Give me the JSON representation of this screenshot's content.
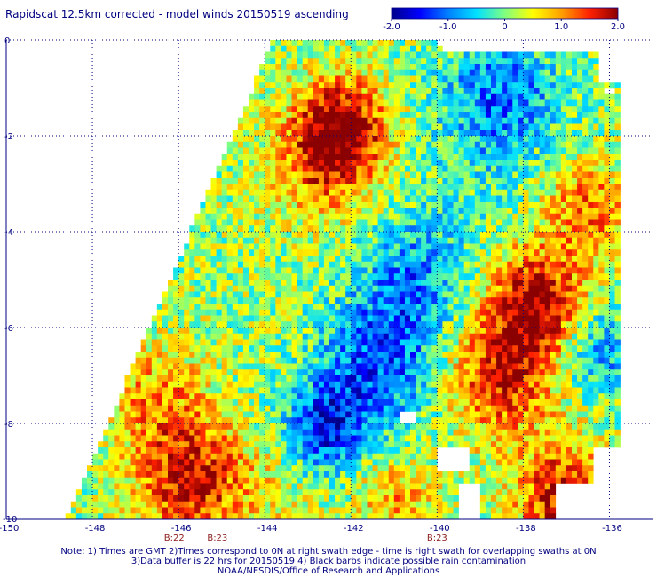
{
  "header": {
    "title": "Rapidscat 12.5km corrected - model winds 20150519 ascending"
  },
  "colorbar": {
    "tick_labels": [
      "-2.0",
      "-1.0",
      "0",
      "1.0",
      "2.0"
    ],
    "tick_values": [
      -2.0,
      -1.0,
      0,
      1.0,
      2.0
    ],
    "colors": [
      "#00008b",
      "#0000ff",
      "#0080ff",
      "#00e0ff",
      "#80ff80",
      "#ffff00",
      "#ffa000",
      "#ff2000",
      "#8b0000"
    ]
  },
  "chart_data": {
    "type": "heatmap",
    "title": "Rapidscat 12.5km corrected - model winds 20150519 ascending",
    "xlabel": "",
    "ylabel": "",
    "xlim": [
      -150,
      -135
    ],
    "ylim": [
      -10,
      0
    ],
    "x_ticks": [
      -150,
      -148,
      -146,
      -144,
      -142,
      -140,
      -138,
      -136
    ],
    "x_tick_labels": [
      "-150",
      "-148",
      "-146",
      "-144",
      "-142",
      "-140",
      "-138",
      "-136"
    ],
    "y_ticks": [
      0,
      -2,
      -4,
      -6,
      -8,
      -10
    ],
    "y_tick_labels": [
      "0",
      "-2",
      "-4",
      "-6",
      "-8",
      "-10"
    ],
    "value_range": [
      -2.0,
      2.0
    ],
    "grid": true,
    "swath_polygon": [
      [
        -143.8,
        0
      ],
      [
        -140.0,
        0
      ],
      [
        -139.8,
        -0.3
      ],
      [
        -136.3,
        -0.3
      ],
      [
        -136.2,
        -0.9
      ],
      [
        -135.7,
        -0.9
      ],
      [
        -135.7,
        -8.5
      ],
      [
        -136.4,
        -8.5
      ],
      [
        -136.4,
        -9.2
      ],
      [
        -137.2,
        -9.2
      ],
      [
        -137.2,
        -10
      ],
      [
        -148.6,
        -10
      ]
    ],
    "time_labels": [
      {
        "text": "B:22",
        "x": -146.1
      },
      {
        "text": "B:23",
        "x": -145.1
      },
      {
        "text": "B:23",
        "x": -140.0
      }
    ],
    "blobs": [
      {
        "x": -142.2,
        "y": -1.8,
        "value": 1.6,
        "radius": 1.0
      },
      {
        "x": -142.6,
        "y": -2.5,
        "value": 1.1,
        "radius": 1.2
      },
      {
        "x": -137.7,
        "y": -5.5,
        "value": 1.8,
        "radius": 1.1
      },
      {
        "x": -138.5,
        "y": -7.0,
        "value": 1.4,
        "radius": 1.3
      },
      {
        "x": -137.0,
        "y": -9.6,
        "value": 1.7,
        "radius": 1.1
      },
      {
        "x": -145.7,
        "y": -9.2,
        "value": 1.6,
        "radius": 1.2
      },
      {
        "x": -146.5,
        "y": -7.5,
        "value": 0.8,
        "radius": 1.2
      },
      {
        "x": -141.4,
        "y": -6.8,
        "value": -1.3,
        "radius": 1.4
      },
      {
        "x": -142.6,
        "y": -8.1,
        "value": -1.6,
        "radius": 0.9
      },
      {
        "x": -140.5,
        "y": -5.0,
        "value": -1.0,
        "radius": 1.3
      },
      {
        "x": -138.5,
        "y": -1.2,
        "value": -1.2,
        "radius": 1.4
      },
      {
        "x": -136.3,
        "y": -6.5,
        "value": -1.1,
        "radius": 0.9
      },
      {
        "x": -139.5,
        "y": -3.0,
        "value": -0.2,
        "radius": 1.5
      },
      {
        "x": -144.5,
        "y": -5.2,
        "value": 0.0,
        "radius": 1.3
      },
      {
        "x": -143.8,
        "y": -9.4,
        "value": 0.3,
        "radius": 1.0
      },
      {
        "x": -136.5,
        "y": -3.5,
        "value": 1.0,
        "radius": 1.0
      },
      {
        "x": -141.0,
        "y": -9.5,
        "value": 0.8,
        "radius": 0.9
      }
    ],
    "missing_patches": [
      {
        "x": -139.95,
        "y": -8.55,
        "w": 0.7,
        "h": 0.5
      },
      {
        "x": -139.5,
        "y": -9.2,
        "w": 0.45,
        "h": 0.8
      },
      {
        "x": -140.9,
        "y": -7.8,
        "w": 0.4,
        "h": 0.25
      },
      {
        "x": -136.1,
        "y": -1.0,
        "w": 0.2,
        "h": 0.15
      }
    ]
  },
  "footer": {
    "note_line1": "Note: 1) Times are GMT 2)Times correspond to 0N at right swath edge - time is right swath for overlapping swaths at 0N",
    "note_line2": "3)Data buffer is 22 hrs for 20150519 4) Black barbs indicate possible rain contamination",
    "note_line3": "NOAA/NESDIS/Office of Research and Applications"
  }
}
